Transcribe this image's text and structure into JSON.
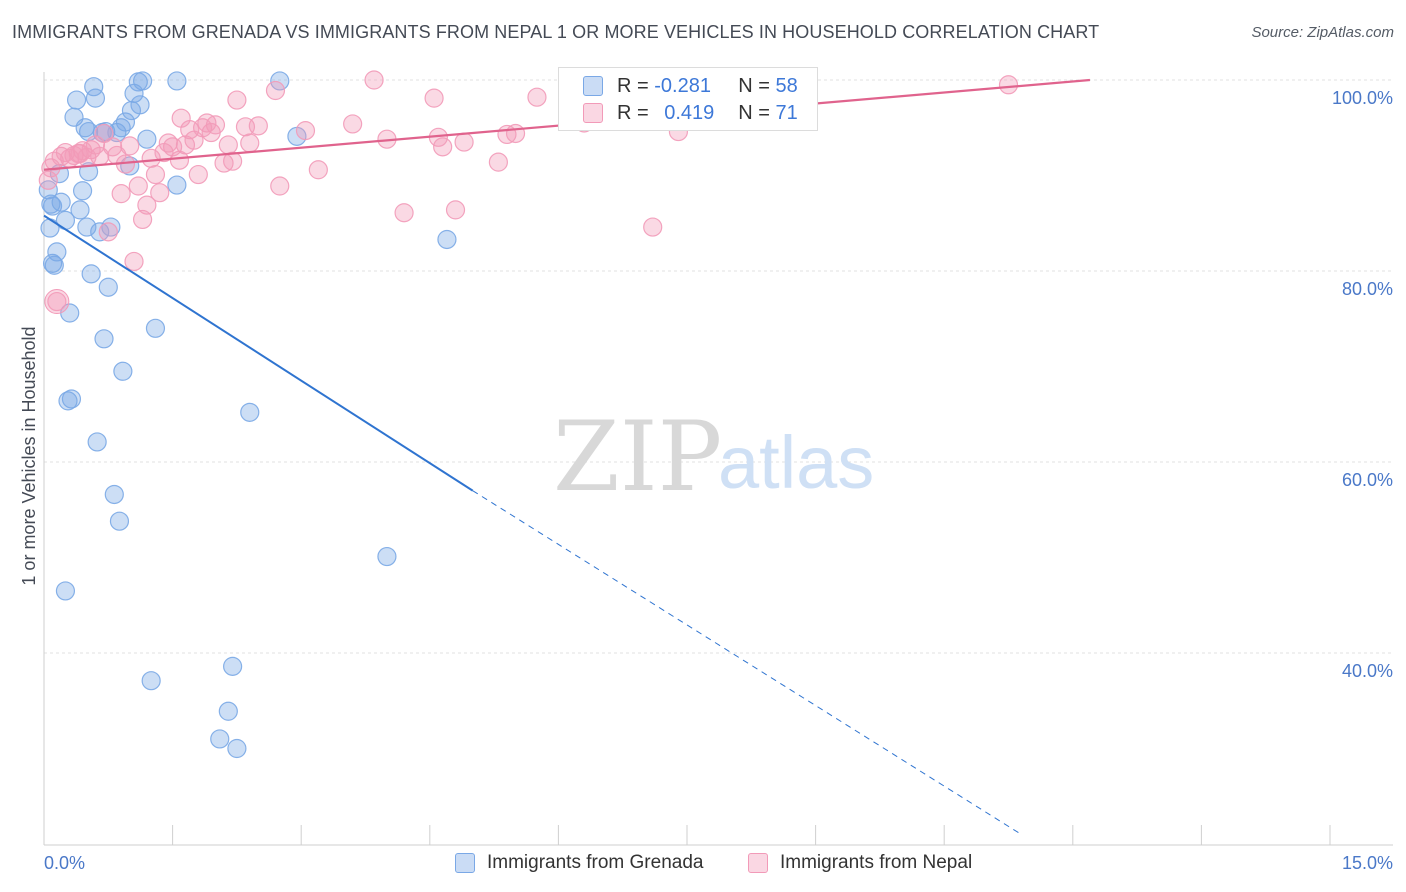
{
  "title": "IMMIGRANTS FROM GRENADA VS IMMIGRANTS FROM NEPAL 1 OR MORE VEHICLES IN HOUSEHOLD CORRELATION CHART",
  "source": "Source: ZipAtlas.com",
  "watermark": {
    "zip": "ZIP",
    "atlas": "atlas"
  },
  "colors": {
    "grenada": "#7aa8e6",
    "grenada_line": "#2f74d0",
    "nepal": "#f29ab8",
    "nepal_line": "#e0638d"
  },
  "legend_top": {
    "grenada": {
      "r_label": "R =",
      "r_value": "-0.281",
      "n_label": "N =",
      "n_value": "58"
    },
    "nepal": {
      "r_label": "R =",
      "r_value": "0.419",
      "n_label": "N =",
      "n_value": "71"
    }
  },
  "chart_data": {
    "type": "scatter",
    "title": "IMMIGRANTS FROM GRENADA VS IMMIGRANTS FROM NEPAL 1 OR MORE VEHICLES IN HOUSEHOLD CORRELATION CHART",
    "xlabel": "",
    "ylabel": "1 or more Vehicles in Household",
    "xlim": [
      0,
      15
    ],
    "ylim": [
      20,
      102
    ],
    "x_tick_labels": [
      {
        "value": 0,
        "label": "0.0%"
      },
      {
        "value": 15,
        "label": "15.0%"
      }
    ],
    "y_tick_labels": [
      {
        "value": 40,
        "label": "40.0%"
      },
      {
        "value": 60,
        "label": "60.0%"
      },
      {
        "value": 80,
        "label": "80.0%"
      },
      {
        "value": 100,
        "label": "100.0%"
      }
    ],
    "series": [
      {
        "name": "Immigrants from Grenada",
        "r": -0.281,
        "n": 58,
        "trend": {
          "x0": 0,
          "y0": 85.8,
          "x1": 5.0,
          "y1": 57.0,
          "dash_x1": 11.4,
          "dash_y1": 21.0
        },
        "points": [
          [
            0.05,
            88.5
          ],
          [
            0.07,
            84.5
          ],
          [
            0.08,
            87.0
          ],
          [
            0.1,
            80.8
          ],
          [
            0.12,
            80.6
          ],
          [
            0.15,
            82.0
          ],
          [
            0.18,
            90.2
          ],
          [
            0.2,
            87.2
          ],
          [
            0.25,
            85.3
          ],
          [
            0.28,
            66.4
          ],
          [
            0.32,
            66.6
          ],
          [
            0.3,
            75.6
          ],
          [
            0.35,
            96.1
          ],
          [
            0.38,
            97.9
          ],
          [
            0.42,
            86.4
          ],
          [
            0.45,
            88.4
          ],
          [
            0.48,
            95.0
          ],
          [
            0.5,
            84.6
          ],
          [
            0.52,
            90.4
          ],
          [
            0.55,
            79.7
          ],
          [
            0.58,
            99.3
          ],
          [
            0.6,
            98.1
          ],
          [
            0.62,
            62.1
          ],
          [
            0.65,
            84.1
          ],
          [
            0.68,
            94.5
          ],
          [
            0.7,
            72.9
          ],
          [
            0.72,
            94.6
          ],
          [
            0.75,
            78.3
          ],
          [
            0.78,
            84.6
          ],
          [
            0.82,
            56.6
          ],
          [
            0.85,
            94.5
          ],
          [
            0.88,
            53.8
          ],
          [
            0.92,
            69.5
          ],
          [
            0.95,
            95.6
          ],
          [
            1.0,
            91.0
          ],
          [
            1.02,
            96.8
          ],
          [
            1.05,
            98.6
          ],
          [
            1.1,
            99.8
          ],
          [
            1.12,
            97.4
          ],
          [
            1.15,
            99.9
          ],
          [
            1.2,
            93.8
          ],
          [
            1.25,
            37.1
          ],
          [
            1.3,
            74.0
          ],
          [
            1.55,
            99.9
          ],
          [
            1.55,
            89.0
          ],
          [
            2.05,
            31.0
          ],
          [
            2.15,
            33.9
          ],
          [
            2.2,
            38.6
          ],
          [
            2.25,
            30.0
          ],
          [
            2.4,
            65.2
          ],
          [
            2.75,
            99.9
          ],
          [
            2.95,
            94.1
          ],
          [
            4.0,
            50.1
          ],
          [
            4.7,
            83.3
          ],
          [
            0.25,
            46.5
          ],
          [
            0.1,
            86.8
          ],
          [
            0.52,
            94.6
          ],
          [
            0.9,
            95.0
          ]
        ]
      },
      {
        "name": "Immigrants from Nepal",
        "r": 0.419,
        "n": 71,
        "trend": {
          "x0": 0,
          "y0": 90.6,
          "x1": 12.2,
          "y1": 100.0
        },
        "points": [
          [
            0.05,
            89.5
          ],
          [
            0.08,
            90.8
          ],
          [
            0.12,
            91.5
          ],
          [
            0.15,
            76.8
          ],
          [
            0.2,
            92.0
          ],
          [
            0.25,
            92.4
          ],
          [
            0.3,
            91.8
          ],
          [
            0.35,
            92.1
          ],
          [
            0.4,
            92.3
          ],
          [
            0.45,
            92.6
          ],
          [
            0.5,
            91.9
          ],
          [
            0.55,
            92.7
          ],
          [
            0.6,
            93.2
          ],
          [
            0.65,
            92.0
          ],
          [
            0.7,
            94.4
          ],
          [
            0.75,
            84.1
          ],
          [
            0.8,
            93.0
          ],
          [
            0.85,
            92.1
          ],
          [
            0.9,
            88.1
          ],
          [
            0.95,
            91.2
          ],
          [
            1.0,
            93.1
          ],
          [
            1.05,
            81.0
          ],
          [
            1.1,
            88.9
          ],
          [
            1.15,
            85.4
          ],
          [
            1.2,
            86.9
          ],
          [
            1.25,
            91.8
          ],
          [
            1.3,
            90.1
          ],
          [
            1.35,
            88.2
          ],
          [
            1.4,
            92.4
          ],
          [
            1.45,
            93.4
          ],
          [
            1.5,
            93.0
          ],
          [
            1.6,
            96.0
          ],
          [
            1.65,
            93.2
          ],
          [
            1.7,
            94.8
          ],
          [
            1.75,
            93.7
          ],
          [
            1.8,
            90.1
          ],
          [
            1.85,
            95.0
          ],
          [
            1.9,
            95.5
          ],
          [
            1.95,
            94.5
          ],
          [
            2.0,
            95.3
          ],
          [
            2.1,
            91.3
          ],
          [
            2.15,
            93.2
          ],
          [
            2.2,
            91.5
          ],
          [
            2.25,
            97.9
          ],
          [
            2.35,
            95.1
          ],
          [
            2.4,
            93.4
          ],
          [
            2.5,
            95.2
          ],
          [
            2.7,
            98.9
          ],
          [
            2.75,
            88.9
          ],
          [
            3.05,
            94.7
          ],
          [
            3.2,
            90.6
          ],
          [
            3.6,
            95.4
          ],
          [
            3.85,
            100.0
          ],
          [
            4.0,
            93.8
          ],
          [
            4.2,
            86.1
          ],
          [
            4.55,
            98.1
          ],
          [
            4.6,
            94.0
          ],
          [
            4.65,
            93.0
          ],
          [
            4.8,
            86.4
          ],
          [
            4.9,
            93.5
          ],
          [
            5.3,
            91.4
          ],
          [
            5.4,
            94.3
          ],
          [
            5.5,
            94.4
          ],
          [
            5.75,
            98.2
          ],
          [
            6.3,
            95.5
          ],
          [
            6.55,
            96.8
          ],
          [
            7.1,
            84.6
          ],
          [
            7.4,
            94.6
          ],
          [
            11.25,
            99.5
          ],
          [
            0.42,
            92.3
          ],
          [
            1.58,
            91.6
          ]
        ]
      }
    ]
  },
  "bottom_legend": [
    {
      "label": "Immigrants from Grenada"
    },
    {
      "label": "Immigrants from Nepal"
    }
  ]
}
